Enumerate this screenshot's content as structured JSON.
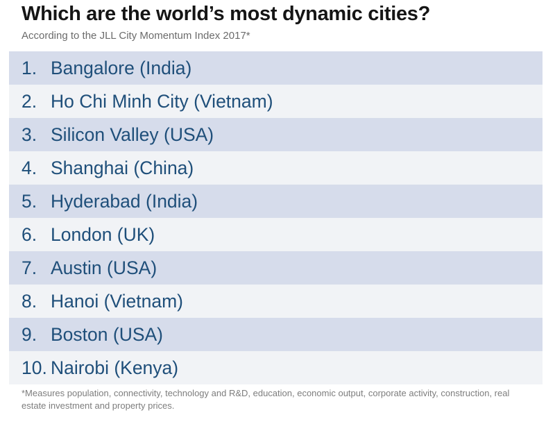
{
  "chart_data": {
    "type": "table",
    "title": "Which are the world’s most dynamic cities?",
    "subtitle": "According to the JLL City Momentum Index 2017*",
    "rows": [
      {
        "rank": "1.",
        "city": "Bangalore (India)"
      },
      {
        "rank": "2.",
        "city": "Ho Chi Minh City (Vietnam)"
      },
      {
        "rank": "3.",
        "city": "Silicon Valley (USA)"
      },
      {
        "rank": "4.",
        "city": "Shanghai (China)"
      },
      {
        "rank": "5.",
        "city": "Hyderabad (India)"
      },
      {
        "rank": "6.",
        "city": "London (UK)"
      },
      {
        "rank": "7.",
        "city": "Austin (USA)"
      },
      {
        "rank": "8.",
        "city": "Hanoi (Vietnam)"
      },
      {
        "rank": "9.",
        "city": "Boston (USA)"
      },
      {
        "rank": "10.",
        "city": "Nairobi (Kenya)"
      }
    ],
    "footnote": "*Measures population, connectivity, technology and R&D, education, economic output, corporate activity, construction, real estate investment and property prices."
  },
  "colors": {
    "row_shaded": "#d6dceb",
    "row_light": "#f1f3f6",
    "row_text": "#1f4f7a"
  }
}
